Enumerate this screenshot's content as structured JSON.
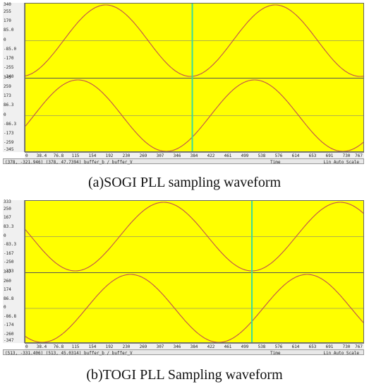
{
  "panels": [
    {
      "id": "a",
      "top_y_labels": [
        "340",
        "255",
        "170",
        "85.0",
        "0",
        "-85.0",
        "-170",
        "-255",
        "-340"
      ],
      "bottom_y_labels": [
        "345",
        "259",
        "173",
        "86.3",
        "0",
        "-86.3",
        "-173",
        "-259",
        "-345"
      ],
      "x_labels": [
        "0",
        "38.4",
        "76.8",
        "115",
        "154",
        "192",
        "230",
        "269",
        "307",
        "346",
        "384",
        "422",
        "461",
        "499",
        "538",
        "576",
        "614",
        "653",
        "691",
        "730",
        "767"
      ],
      "status": {
        "left": "(378, -321.946) (378, 47.7394)  buffer_b / buffer_V",
        "mid": "Time",
        "right": "Lin Auto Scale"
      },
      "caption": "(a)SOGI PLL sampling waveform",
      "cursor_x": 378,
      "chart_data": {
        "type": "line",
        "x_range": [
          0,
          767
        ],
        "series": [
          {
            "name": "buffer_b",
            "trace": "upper",
            "shape": "sine",
            "amplitude": 340,
            "period": 384,
            "peak_x": 182,
            "ylim": [
              -340,
              340
            ]
          },
          {
            "name": "buffer_V",
            "trace": "lower",
            "shape": "sine",
            "amplitude": 345,
            "period": 400,
            "peak_x": 119,
            "ylim": [
              -345,
              345
            ]
          }
        ]
      }
    },
    {
      "id": "b",
      "top_y_labels": [
        "333",
        "250",
        "167",
        "83.3",
        "0",
        "-83.3",
        "-167",
        "-250",
        "-333"
      ],
      "bottom_y_labels": [
        "347",
        "260",
        "174",
        "86.8",
        "0",
        "-86.8",
        "-174",
        "-260",
        "-347"
      ],
      "x_labels": [
        "0",
        "38.4",
        "76.8",
        "115",
        "154",
        "192",
        "230",
        "269",
        "307",
        "346",
        "384",
        "422",
        "461",
        "499",
        "538",
        "576",
        "614",
        "653",
        "691",
        "730",
        "767"
      ],
      "status": {
        "left": "(513, -331.406) (513, 45.0314)  buffer_b / buffer_V",
        "mid": "Time",
        "right": "Lin Auto Scale"
      },
      "caption": "(b)TOGI PLL Sampling waveform",
      "cursor_x": 513,
      "chart_data": {
        "type": "line",
        "x_range": [
          0,
          767
        ],
        "series": [
          {
            "name": "buffer_b",
            "trace": "upper",
            "shape": "sine",
            "amplitude": 333,
            "period": 400,
            "peak_x": 313,
            "ylim": [
              -333,
              333
            ]
          },
          {
            "name": "buffer_V",
            "trace": "lower",
            "shape": "sine",
            "amplitude": 347,
            "period": 400,
            "peak_x": 238,
            "ylim": [
              -347,
              347
            ]
          }
        ]
      }
    }
  ],
  "colors": {
    "plot_background": "#ffff00",
    "trace": "#c0504d",
    "cursor": "#3adc9a",
    "gridline": "#9a9a60"
  }
}
